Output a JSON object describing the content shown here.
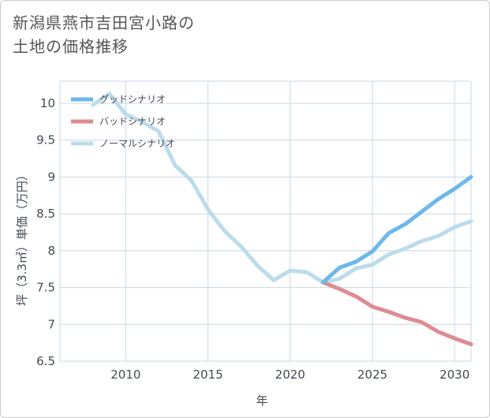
{
  "title_lines": [
    "新潟県燕市吉田宮小路の",
    "土地の価格推移"
  ],
  "chart_data": {
    "type": "line",
    "xlabel": "年",
    "ylabel": "坪（3.3㎡）単価（万円）",
    "xlim": [
      2006,
      2031
    ],
    "ylim": [
      6.5,
      10.3
    ],
    "x_ticks": [
      2010,
      2015,
      2020,
      2025,
      2030
    ],
    "y_ticks": [
      6.5,
      7,
      7.5,
      8,
      8.5,
      9,
      9.5,
      10
    ],
    "grid": true,
    "legend_position": "top-left",
    "series": [
      {
        "name": "グッドシナリオ",
        "color": "#6cb8ea",
        "x": [
          2022,
          2023,
          2024,
          2025,
          2026,
          2027,
          2028,
          2029,
          2030,
          2031
        ],
        "y": [
          7.57,
          7.77,
          7.85,
          7.99,
          8.24,
          8.36,
          8.53,
          8.7,
          8.84,
          9.0
        ]
      },
      {
        "name": "バッドシナリオ",
        "color": "#dd8c91",
        "x": [
          2022,
          2023,
          2024,
          2025,
          2026,
          2027,
          2028,
          2029,
          2030,
          2031
        ],
        "y": [
          7.57,
          7.48,
          7.38,
          7.24,
          7.17,
          7.09,
          7.03,
          6.9,
          6.81,
          6.73
        ]
      },
      {
        "name": "ノーマルシナリオ",
        "color": "#bcdcec",
        "x": [
          2008,
          2009,
          2010,
          2011,
          2012,
          2013,
          2014,
          2015,
          2016,
          2017,
          2018,
          2019,
          2020,
          2021,
          2022,
          2023,
          2024,
          2025,
          2026,
          2027,
          2028,
          2029,
          2030,
          2031
        ],
        "y": [
          9.98,
          10.13,
          9.85,
          9.75,
          9.62,
          9.16,
          8.95,
          8.56,
          8.27,
          8.06,
          7.8,
          7.6,
          7.73,
          7.71,
          7.57,
          7.62,
          7.76,
          7.81,
          7.95,
          8.03,
          8.13,
          8.2,
          8.32,
          8.4
        ]
      }
    ]
  }
}
